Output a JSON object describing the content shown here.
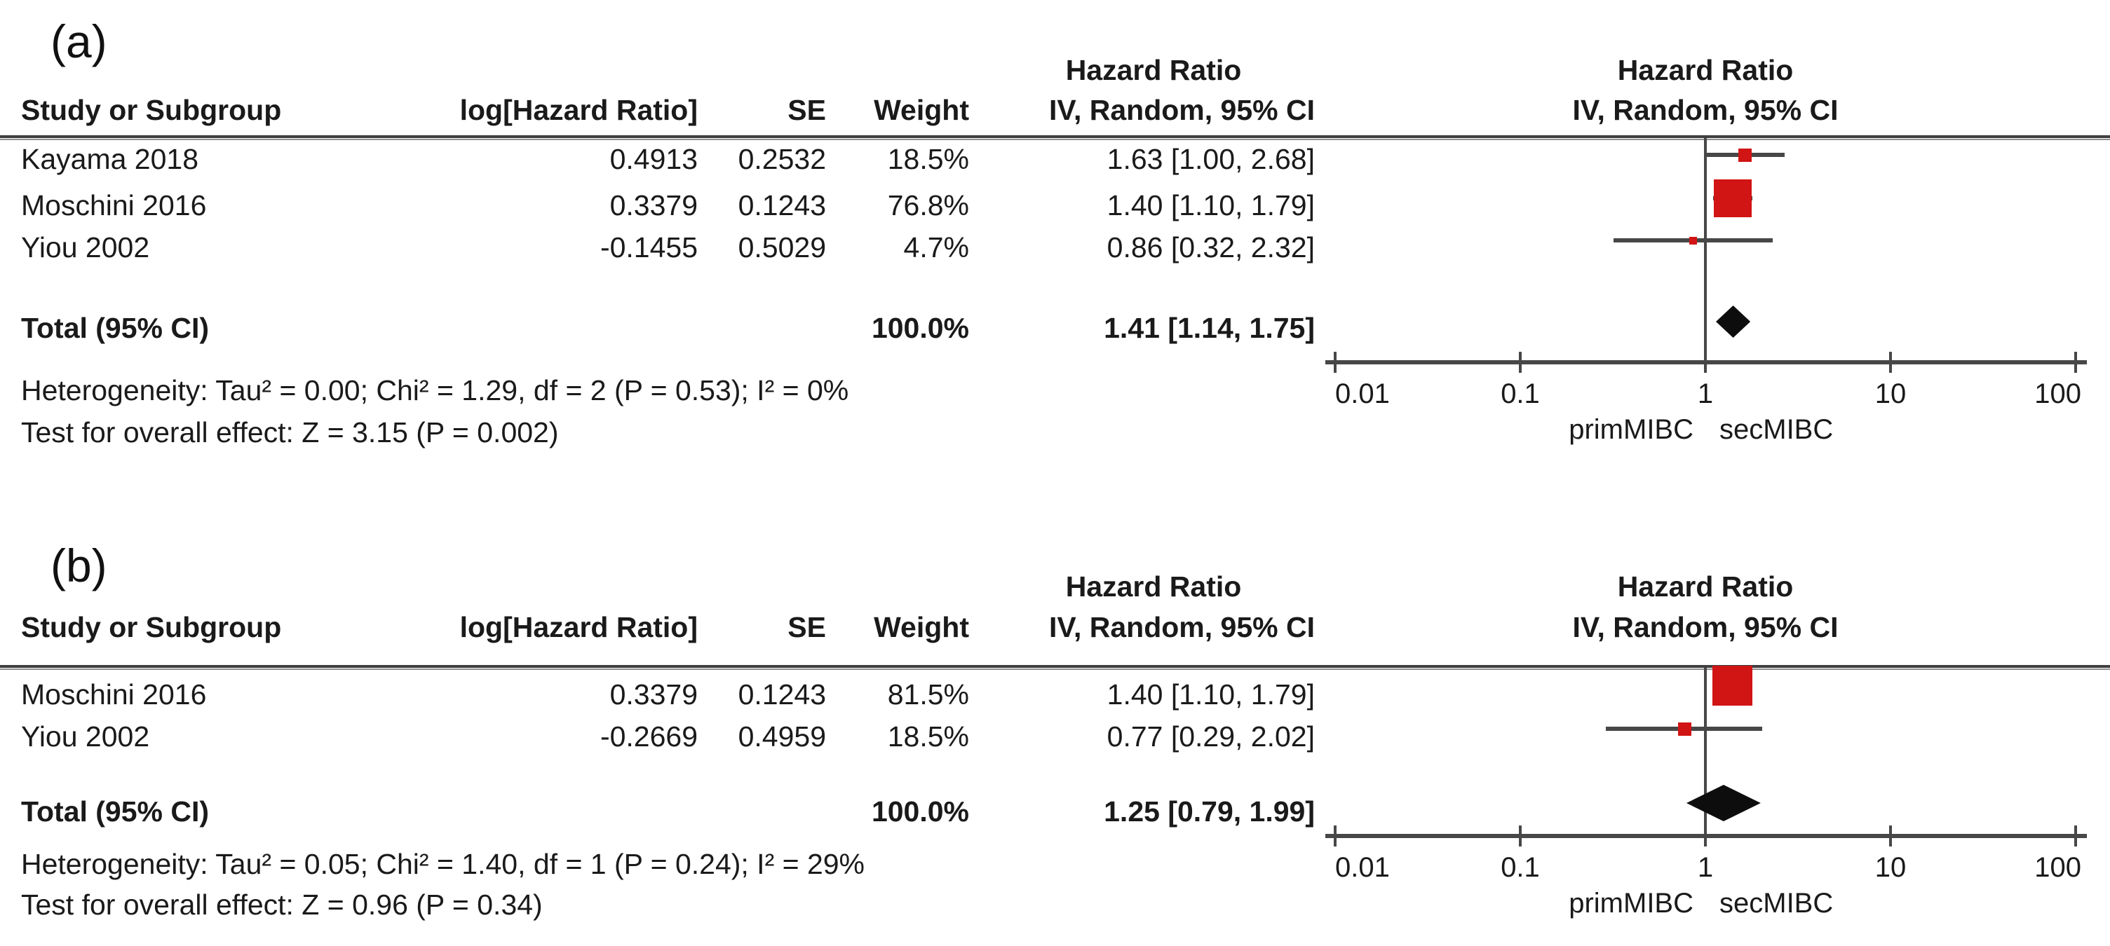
{
  "panels": [
    {
      "label": "(a)",
      "table": {
        "headers": {
          "study": "Study or Subgroup",
          "loghr": "log[Hazard Ratio]",
          "se": "SE",
          "weight": "Weight",
          "ci": "IV, Random, 95% CI",
          "hazard_ratio": "Hazard Ratio"
        },
        "rows": [
          {
            "study": "Kayama 2018",
            "loghr": "0.4913",
            "se": "0.2532",
            "weight": "18.5%",
            "ci": "1.63 [1.00, 2.68]"
          },
          {
            "study": "Moschini 2016",
            "loghr": "0.3379",
            "se": "0.1243",
            "weight": "76.8%",
            "ci": "1.40 [1.10, 1.79]"
          },
          {
            "study": "Yiou 2002",
            "loghr": "-0.1455",
            "se": "0.5029",
            "weight": "4.7%",
            "ci": "0.86 [0.32, 2.32]"
          }
        ],
        "total": {
          "label": "Total (95% CI)",
          "weight": "100.0%",
          "ci": "1.41 [1.14, 1.75]"
        },
        "heterogeneity": "Heterogeneity: Tau² = 0.00; Chi² = 1.29, df = 2 (P = 0.53); I² = 0%",
        "overall_effect": "Test for overall effect: Z = 3.15 (P = 0.002)"
      }
    },
    {
      "label": "(b)",
      "table": {
        "headers": {
          "study": "Study or Subgroup",
          "loghr": "log[Hazard Ratio]",
          "se": "SE",
          "weight": "Weight",
          "ci": "IV, Random, 95% CI",
          "hazard_ratio": "Hazard Ratio"
        },
        "rows": [
          {
            "study": "Moschini 2016",
            "loghr": "0.3379",
            "se": "0.1243",
            "weight": "81.5%",
            "ci": "1.40 [1.10, 1.79]"
          },
          {
            "study": "Yiou 2002",
            "loghr": "-0.2669",
            "se": "0.4959",
            "weight": "18.5%",
            "ci": "0.77 [0.29, 2.02]"
          }
        ],
        "total": {
          "label": "Total (95% CI)",
          "weight": "100.0%",
          "ci": "1.25 [0.79, 1.99]"
        },
        "heterogeneity": "Heterogeneity: Tau² = 0.05; Chi² = 1.40, df = 1 (P = 0.24); I² = 29%",
        "overall_effect": "Test for overall effect: Z = 0.96 (P = 0.34)"
      }
    }
  ],
  "chart_data": [
    {
      "type": "forest",
      "panel": "(a)",
      "effect_measure": "Hazard Ratio",
      "model": "IV, Random, 95% CI",
      "x_scale": "log10",
      "x_ticks": [
        0.01,
        0.1,
        1,
        10,
        100
      ],
      "x_tick_labels": [
        "0.01",
        "0.1",
        "1",
        "10",
        "100"
      ],
      "xlabel_left": "primMIBC",
      "xlabel_right": "secMIBC",
      "marker_color": "#d11414",
      "studies": [
        {
          "name": "Kayama 2018",
          "log_hr": 0.4913,
          "se": 0.2532,
          "weight_pct": 18.5,
          "hr": 1.63,
          "ci_low": 1.0,
          "ci_high": 2.68
        },
        {
          "name": "Moschini 2016",
          "log_hr": 0.3379,
          "se": 0.1243,
          "weight_pct": 76.8,
          "hr": 1.4,
          "ci_low": 1.1,
          "ci_high": 1.79
        },
        {
          "name": "Yiou 2002",
          "log_hr": -0.1455,
          "se": 0.5029,
          "weight_pct": 4.7,
          "hr": 0.86,
          "ci_low": 0.32,
          "ci_high": 2.32
        }
      ],
      "total": {
        "hr": 1.41,
        "ci_low": 1.14,
        "ci_high": 1.75,
        "weight_pct": 100.0
      },
      "heterogeneity": "Tau² = 0.00; Chi² = 1.29, df = 2 (P = 0.53); I² = 0%",
      "overall_effect": "Z = 3.15 (P = 0.002)"
    },
    {
      "type": "forest",
      "panel": "(b)",
      "effect_measure": "Hazard Ratio",
      "model": "IV, Random, 95% CI",
      "x_scale": "log10",
      "x_ticks": [
        0.01,
        0.1,
        1,
        10,
        100
      ],
      "x_tick_labels": [
        "0.01",
        "0.1",
        "1",
        "10",
        "100"
      ],
      "xlabel_left": "primMIBC",
      "xlabel_right": "secMIBC",
      "marker_color": "#d11414",
      "studies": [
        {
          "name": "Moschini 2016",
          "log_hr": 0.3379,
          "se": 0.1243,
          "weight_pct": 81.5,
          "hr": 1.4,
          "ci_low": 1.1,
          "ci_high": 1.79
        },
        {
          "name": "Yiou 2002",
          "log_hr": -0.2669,
          "se": 0.4959,
          "weight_pct": 18.5,
          "hr": 0.77,
          "ci_low": 0.29,
          "ci_high": 2.02
        }
      ],
      "total": {
        "hr": 1.25,
        "ci_low": 0.79,
        "ci_high": 1.99,
        "weight_pct": 100.0
      },
      "heterogeneity": "Tau² = 0.05; Chi² = 1.40, df = 1 (P = 0.24); I² = 29%",
      "overall_effect": "Z = 0.96 (P = 0.34)"
    }
  ]
}
